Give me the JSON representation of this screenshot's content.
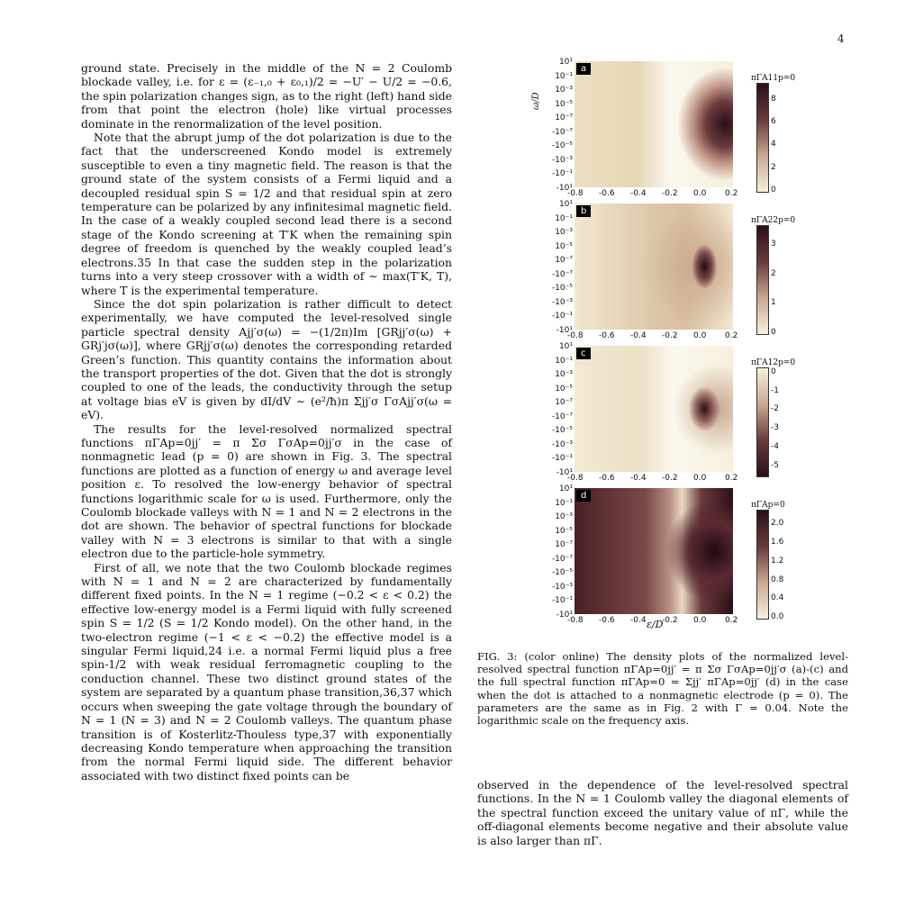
{
  "page_number": "4",
  "left_column": [
    {
      "indent": false,
      "text": "ground state. Precisely in the middle of the N = 2 Coulomb blockade valley, i.e. for ε = (ε₋₁,₀ + ε₀,₁)/2 = −U′ − U/2 = −0.6, the spin polarization changes sign, as to the right (left) hand side from that point the electron (hole) like virtual processes dominate in the renormalization of the level position."
    },
    {
      "indent": true,
      "text": "Note that the abrupt jump of the dot polarization is due to the fact that the underscreened Kondo model is extremely susceptible to even a tiny magnetic field. The reason is that the ground state of the system consists of a Fermi liquid and a decoupled residual spin S = 1/2 and that residual spin at zero temperature can be polarized by any infinitesimal magnetic field. In the case of a weakly coupled second lead there is a second stage of the Kondo screening at T′K when the remaining spin degree of freedom is quenched by the weakly coupled lead’s electrons.35 In that case the sudden step in the polarization turns into a very steep crossover with a width of ∼ max(T′K, T), where T is the experimental temperature."
    },
    {
      "indent": true,
      "text": "Since the dot spin polarization is rather difficult to detect experimentally, we have computed the level-resolved single particle spectral density Ajj′σ(ω) = −(1/2π)Im [GRjj′σ(ω) + GRj′jσ(ω)], where GRjj′σ(ω) denotes the corresponding retarded Green’s function. This quantity contains the information about the transport properties of the dot. Given that the dot is strongly coupled to one of the leads, the conductivity through the setup at voltage bias eV is given by dI/dV ∼ (e²/ħ)π Σjj′σ ΓσAjj′σ(ω = eV)."
    },
    {
      "indent": true,
      "text": "The results for the level-resolved normalized spectral functions πΓAp=0jj′ = π Σσ ΓσAp=0jj′σ in the case of nonmagnetic lead (p = 0) are shown in Fig. 3. The spectral functions are plotted as a function of energy ω and average level position ε. To resolved the low-energy behavior of spectral functions logarithmic scale for ω is used. Furthermore, only the Coulomb blockade valleys with N = 1 and N = 2 electrons in the dot are shown. The behavior of spectral functions for blockade valley with N = 3 electrons is similar to that with a single electron due to the particle-hole symmetry."
    },
    {
      "indent": true,
      "text": "First of all, we note that the two Coulomb blockade regimes with N = 1 and N = 2 are characterized by fundamentally different fixed points. In the N = 1 regime (−0.2 < ε < 0.2) the effective low-energy model is a Fermi liquid with fully screened spin S = 1/2 (S = 1/2 Kondo model). On the other hand, in the two-electron regime (−1 < ε < −0.2) the effective model is a singular Fermi liquid,24 i.e. a normal Fermi liquid plus a free spin-1/2 with weak residual ferromagnetic coupling to the conduction channel. These two distinct ground states of the system are separated by a quantum phase transition,36,37 which occurs when sweeping the gate voltage through the boundary of N = 1 (N = 3) and N = 2 Coulomb valleys. The quantum phase transition is of Kosterlitz-Thouless type,37 with exponentially decreasing Kondo temperature when approaching the transition from the normal Fermi liquid side. The different behavior associated with two distinct fixed points can be"
    }
  ],
  "right_bottom_text": "observed in the dependence of the level-resolved spectral functions. In the N = 1 Coulomb valley the diagonal elements of the spectral function exceed the unitary value of πΓ, while the off-diagonal elements become negative and their absolute value is also larger than πΓ.",
  "caption": "FIG. 3: (color online) The density plots of the normalized level-resolved spectral function πΓAp=0jj′ = π Σσ ΓσAp=0jj′σ (a)-(c) and the full spectral function πΓAp=0 = Σjj′ πΓAp=0jj′ (d) in the case when the dot is attached to a nonmagnetic electrode (p = 0). The parameters are the same as in Fig. 2 with Γ = 0.04. Note the logarithmic scale on the frequency axis.",
  "figure": {
    "y_ticks": [
      "10¹",
      "10⁻¹",
      "10⁻³",
      "10⁻⁵",
      "10⁻⁷",
      "-10⁻⁷",
      "-10⁻⁵",
      "-10⁻³",
      "-10⁻¹",
      "-10¹"
    ],
    "x_ticks": [
      "-0.8",
      "-0.6",
      "-0.4",
      "-0.2",
      "0.0",
      "0.2"
    ],
    "y_axis_title": "ω/D",
    "x_axis_title": "ε/D",
    "panels": [
      {
        "badge": "a",
        "cbar_title": "πΓA11p=0",
        "cbar_ticks": [
          "0",
          "2",
          "4",
          "6",
          "8"
        ],
        "colors": [
          "#f5efd8",
          "#3a1a20"
        ]
      },
      {
        "badge": "b",
        "cbar_title": "πΓA22p=0",
        "cbar_ticks": [
          "0",
          "1",
          "2",
          "3"
        ],
        "colors": [
          "#f5efd8",
          "#3a1a20"
        ]
      },
      {
        "badge": "c",
        "cbar_title": "πΓA12p=0",
        "cbar_ticks": [
          "0",
          "-1",
          "-2",
          "-3",
          "-4",
          "-5"
        ],
        "colors": [
          "#f5efd8",
          "#3a1a20"
        ]
      },
      {
        "badge": "d",
        "cbar_title": "πΓAp=0",
        "cbar_ticks": [
          "0.0",
          "0.4",
          "0.8",
          "1.2",
          "1.6",
          "2.0"
        ],
        "colors": [
          "#f5efd8",
          "#3a1a20"
        ]
      }
    ]
  }
}
